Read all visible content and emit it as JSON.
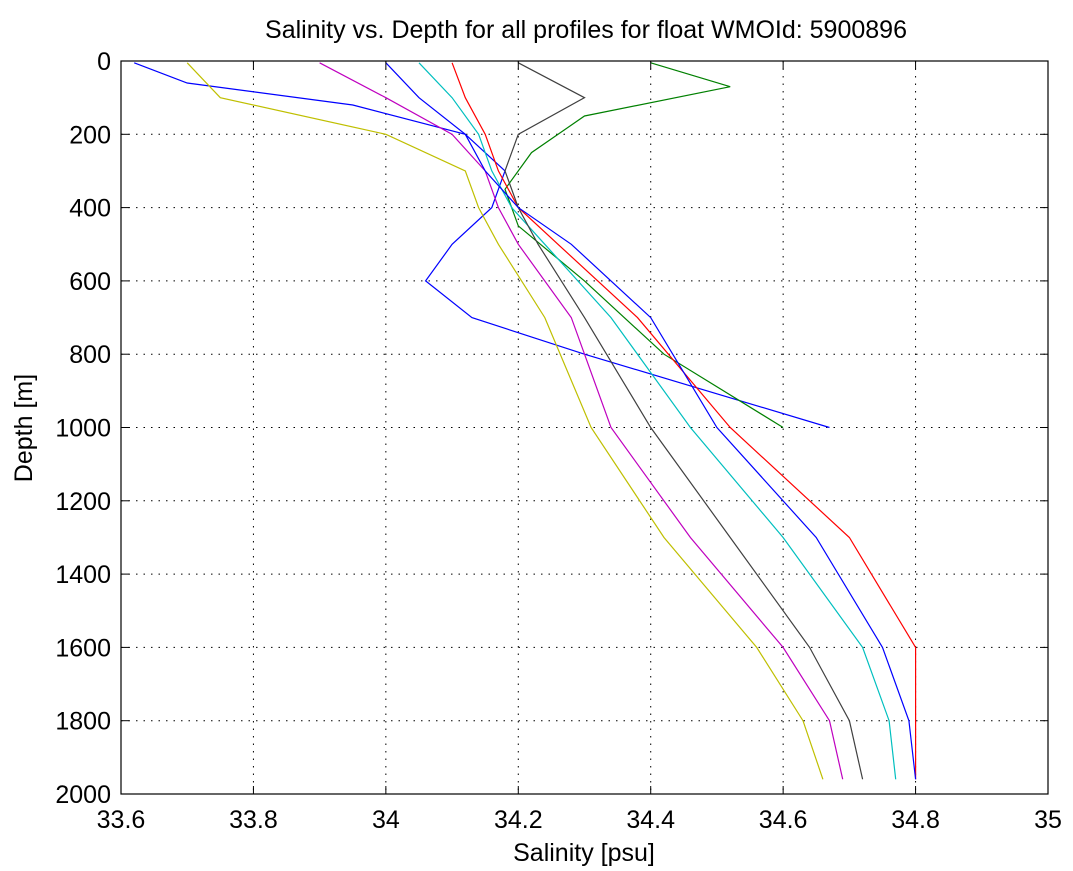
{
  "chart_data": {
    "type": "line",
    "title": "Salinity vs. Depth for all profiles for float WMOId: 5900896",
    "xlabel": "Salinity [psu]",
    "ylabel": "Depth [m]",
    "xlim": [
      33.6,
      35
    ],
    "ylim": [
      0,
      2000
    ],
    "y_reversed": true,
    "grid": true,
    "x_ticks": [
      "33.6",
      "33.8",
      "34",
      "34.2",
      "34.4",
      "34.6",
      "34.8",
      "35"
    ],
    "y_ticks": [
      "0",
      "200",
      "400",
      "600",
      "800",
      "1000",
      "1200",
      "1400",
      "1600",
      "1800",
      "2000"
    ],
    "series_colors": [
      "#0000ff",
      "#008000",
      "#ff0000",
      "#00bfbf",
      "#bf00bf",
      "#bfbf00",
      "#404040"
    ],
    "series": [
      {
        "depth": [
          5,
          60,
          120,
          200,
          300,
          400,
          500,
          600,
          700,
          800,
          1000
        ],
        "salinity": [
          33.62,
          33.7,
          33.95,
          34.12,
          34.18,
          34.16,
          34.1,
          34.06,
          34.13,
          34.3,
          34.67
        ]
      },
      {
        "depth": [
          5,
          70,
          150,
          250,
          350,
          450,
          600,
          800,
          1000
        ],
        "salinity": [
          34.4,
          34.52,
          34.3,
          34.22,
          34.18,
          34.2,
          34.3,
          34.42,
          34.6
        ]
      },
      {
        "depth": [
          5,
          100,
          200,
          300,
          400,
          500,
          700,
          1000,
          1300,
          1600,
          1800,
          1960
        ],
        "salinity": [
          34.1,
          34.12,
          34.15,
          34.17,
          34.2,
          34.26,
          34.38,
          34.52,
          34.7,
          34.8,
          34.8,
          34.8
        ]
      },
      {
        "depth": [
          5,
          100,
          200,
          300,
          400,
          500,
          700,
          1000,
          1300,
          1600,
          1800,
          1960
        ],
        "salinity": [
          34.05,
          34.1,
          34.14,
          34.16,
          34.19,
          34.24,
          34.34,
          34.46,
          34.6,
          34.72,
          34.76,
          34.77
        ]
      },
      {
        "depth": [
          5,
          100,
          200,
          300,
          400,
          500,
          700,
          1000,
          1300,
          1600,
          1800,
          1960
        ],
        "salinity": [
          33.9,
          34.0,
          34.1,
          34.15,
          34.17,
          34.2,
          34.28,
          34.34,
          34.46,
          34.6,
          34.67,
          34.69
        ]
      },
      {
        "depth": [
          5,
          100,
          200,
          300,
          400,
          500,
          700,
          1000,
          1300,
          1600,
          1800,
          1960
        ],
        "salinity": [
          33.7,
          33.75,
          34.0,
          34.12,
          34.14,
          34.17,
          34.24,
          34.31,
          34.42,
          34.56,
          34.63,
          34.66
        ]
      },
      {
        "depth": [
          5,
          100,
          200,
          300,
          400,
          500,
          700,
          1000,
          1300,
          1600,
          1800,
          1960
        ],
        "salinity": [
          34.2,
          34.3,
          34.2,
          34.18,
          34.2,
          34.23,
          34.3,
          34.4,
          34.52,
          34.64,
          34.7,
          34.72
        ]
      },
      {
        "depth": [
          5,
          100,
          200,
          300,
          400,
          500,
          700,
          1000,
          1300,
          1600,
          1800,
          1960
        ],
        "salinity": [
          34.0,
          34.05,
          34.12,
          34.15,
          34.2,
          34.28,
          34.4,
          34.5,
          34.65,
          34.75,
          34.79,
          34.8
        ]
      }
    ]
  }
}
